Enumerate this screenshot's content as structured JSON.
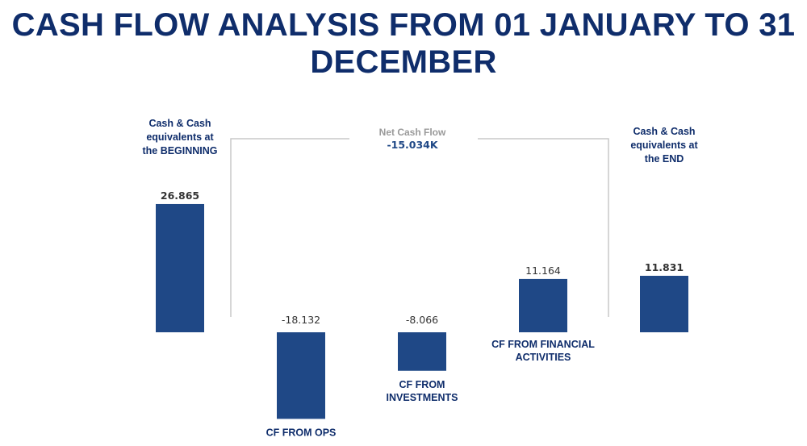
{
  "title": "CASH FLOW ANALYSIS FROM 01 JANUARY TO 31 DECEMBER",
  "chart_data": {
    "type": "bar",
    "subtype": "waterfall",
    "title": "CASH FLOW ANALYSIS FROM 01 JANUARY TO 31 DECEMBER",
    "categories": [
      [
        "Cash & Cash",
        "equivalents at",
        "the BEGINNING"
      ],
      [
        "CF FROM OPS"
      ],
      [
        "CF FROM",
        "INVESTMENTS"
      ],
      [
        "CF FROM FINANCIAL",
        "ACTIVITIES"
      ],
      [
        "Cash & Cash",
        "equivalents at",
        "the END"
      ]
    ],
    "values": [
      26.865,
      -18.132,
      -8.066,
      11.164,
      11.831
    ],
    "value_labels": [
      "26.865",
      "-18.132",
      "-8.066",
      "11.164",
      "11.831"
    ],
    "bar_color": "#1f4886",
    "annotation": {
      "label": "Net Cash Flow",
      "value": "-15.034K"
    },
    "xlabel": "",
    "ylabel": "",
    "grid": false
  }
}
